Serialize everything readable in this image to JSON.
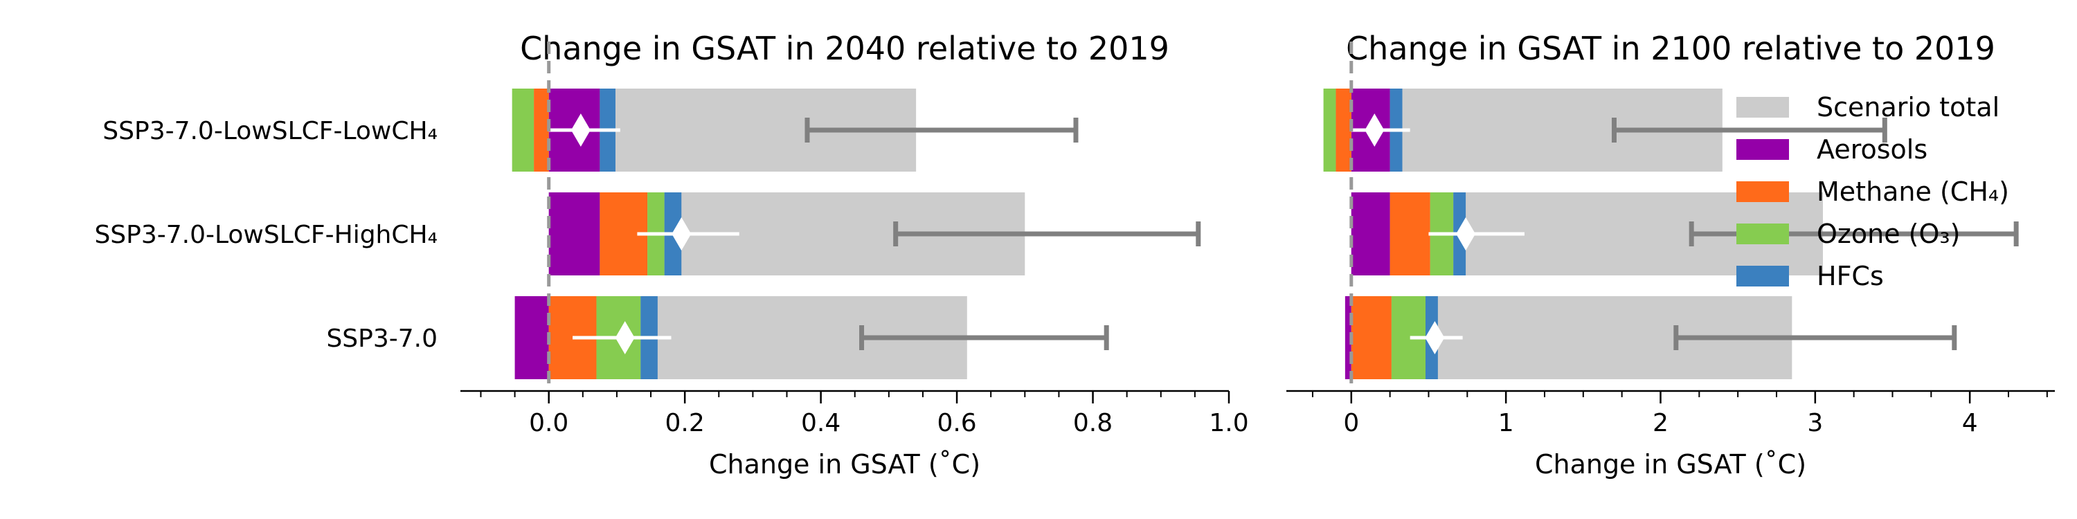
{
  "colors": {
    "total": "#cccccc",
    "aerosols": "#9400a8",
    "methane": "#ff6a1a",
    "ozone": "#86cc50",
    "hfcs": "#3b80bf",
    "range": "#808080",
    "marker": "#ffffff",
    "zero_line": "#999999"
  },
  "chart_data": [
    {
      "type": "bar",
      "orientation": "horizontal",
      "stacked": true,
      "title": "Change in GSAT in 2040 relative to 2019",
      "xlabel": "Change in GSAT (˚C)",
      "xlim": [
        -0.13,
        1.0
      ],
      "xticks": [
        "0.0",
        "0.2",
        "0.4",
        "0.6",
        "0.8",
        "1.0"
      ],
      "categories": [
        "SSP3-7.0-LowSLCF-LowCH₄",
        "SSP3-7.0-LowSLCF-HighCH₄",
        "SSP3-7.0"
      ],
      "scenario_total": [
        0.54,
        0.7,
        0.615
      ],
      "total_range_low": [
        0.38,
        0.51,
        0.46
      ],
      "total_range_high": [
        0.775,
        0.955,
        0.82
      ],
      "series": [
        {
          "name": "Aerosols",
          "values": [
            0.075,
            0.075,
            -0.05
          ]
        },
        {
          "name": "Methane (CH₄)",
          "values": [
            -0.022,
            0.07,
            0.07
          ]
        },
        {
          "name": "Ozone (O₃)",
          "values": [
            -0.032,
            0.025,
            0.065
          ]
        },
        {
          "name": "HFCs",
          "values": [
            0.023,
            0.025,
            0.025
          ]
        }
      ],
      "slcf_best": [
        0.047,
        0.195,
        0.112
      ],
      "slcf_range_low": [
        0.0,
        0.13,
        0.035
      ],
      "slcf_range_high": [
        0.105,
        0.28,
        0.18
      ]
    },
    {
      "type": "bar",
      "orientation": "horizontal",
      "stacked": true,
      "title": "Change in GSAT in 2100 relative to 2019",
      "xlabel": "Change in GSAT (˚C)",
      "xlim": [
        -0.42,
        4.55
      ],
      "xticks": [
        "0",
        "1",
        "2",
        "3",
        "4"
      ],
      "categories": [
        "SSP3-7.0-LowSLCF-LowCH₄",
        "SSP3-7.0-LowSLCF-HighCH₄",
        "SSP3-7.0"
      ],
      "scenario_total": [
        2.4,
        3.05,
        2.85
      ],
      "total_range_low": [
        1.7,
        2.2,
        2.1
      ],
      "total_range_high": [
        3.45,
        4.3,
        3.9
      ],
      "series": [
        {
          "name": "Aerosols",
          "values": [
            0.25,
            0.25,
            -0.04
          ]
        },
        {
          "name": "Methane (CH₄)",
          "values": [
            -0.1,
            0.26,
            0.26
          ]
        },
        {
          "name": "Ozone (O₃)",
          "values": [
            -0.08,
            0.15,
            0.22
          ]
        },
        {
          "name": "HFCs",
          "values": [
            0.08,
            0.08,
            0.08
          ]
        }
      ],
      "slcf_best": [
        0.15,
        0.74,
        0.54
      ],
      "slcf_range_low": [
        0.0,
        0.5,
        0.38
      ],
      "slcf_range_high": [
        0.38,
        1.12,
        0.72
      ]
    }
  ],
  "legend": {
    "placement": "top-right",
    "items": [
      {
        "label": "Scenario total",
        "color": "#cccccc"
      },
      {
        "label": "Aerosols",
        "color": "#9400a8"
      },
      {
        "label": "Methane (CH₄)",
        "color": "#ff6a1a"
      },
      {
        "label": "Ozone (O₃)",
        "color": "#86cc50"
      },
      {
        "label": "HFCs",
        "color": "#3b80bf"
      }
    ]
  }
}
